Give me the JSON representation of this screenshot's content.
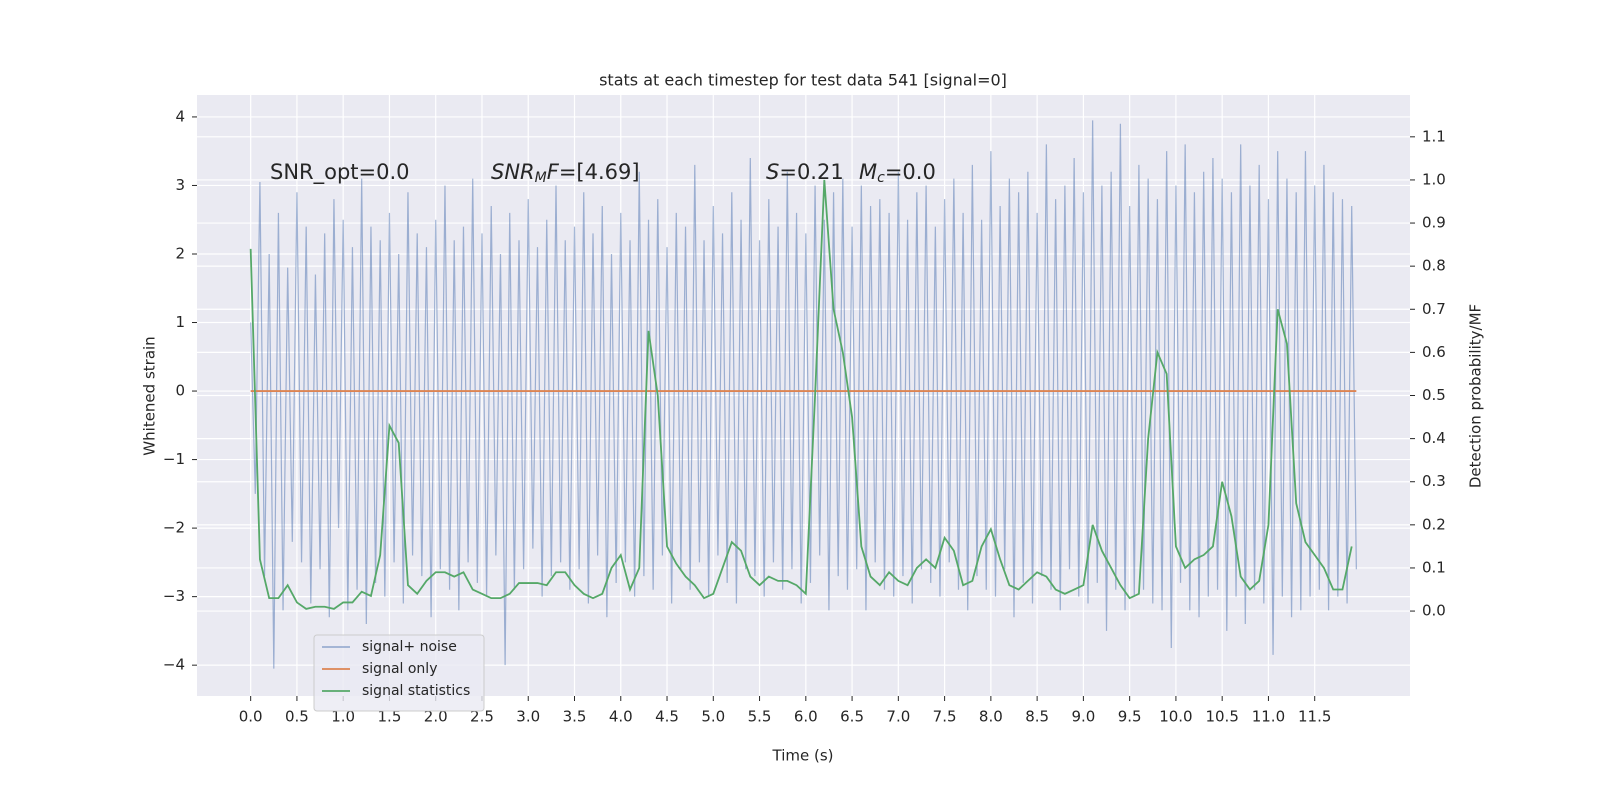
{
  "chart_data": {
    "type": "line",
    "title": "stats at each timestep for test data 541 [signal=0]",
    "xlabel": "Time (s)",
    "ylabel": "Whitened strain",
    "y2label": "Detection probability/MF",
    "xlim": [
      -0.58,
      12.53
    ],
    "ylim": [
      -4.45,
      4.32
    ],
    "y2lim": [
      -0.197,
      1.197
    ],
    "grid": true,
    "legend": "lower left",
    "xticks": [
      {
        "value": 0,
        "label": "0.0"
      },
      0.5,
      {
        "value": 1,
        "label": "1.0"
      },
      1.5,
      {
        "value": 2,
        "label": "2.0"
      },
      2.5,
      {
        "value": 3,
        "label": "3.0"
      },
      3.5,
      {
        "value": 4,
        "label": "4.0"
      },
      4.5,
      {
        "value": 5,
        "label": "5.0"
      },
      5.5,
      {
        "value": 6,
        "label": "6.0"
      },
      6.5,
      {
        "value": 7,
        "label": "7.0"
      },
      7.5,
      {
        "value": 8,
        "label": "8.0"
      },
      8.5,
      {
        "value": 9,
        "label": "9.0"
      },
      9.5,
      {
        "value": 10,
        "label": "10.0"
      },
      10.5,
      {
        "value": 11,
        "label": "11.0"
      },
      11.5
    ],
    "yticks": [
      {
        "value": -4,
        "label": "−4"
      },
      {
        "value": -3,
        "label": "−3"
      },
      {
        "value": -2,
        "label": "−2"
      },
      {
        "value": -1,
        "label": "−1"
      },
      0,
      1,
      2,
      3,
      4
    ],
    "y2ticks": [
      {
        "value": 0,
        "label": "0.0"
      },
      0.1,
      0.2,
      0.3,
      0.4,
      0.5,
      0.6,
      0.7,
      0.8,
      0.9,
      {
        "value": 1,
        "label": "1.0"
      },
      1.1
    ],
    "annotations": [
      [
        {
          "text": "SNR_opt=0.0"
        }
      ],
      [
        {
          "text": "SNR",
          "italic": true
        },
        {
          "text": "M",
          "italic": true,
          "sub": true
        },
        {
          "text": "F",
          "italic": true
        },
        {
          "text": "=[4.69]"
        }
      ],
      [
        {
          "text": "S",
          "italic": true
        },
        {
          "text": "=0.21"
        }
      ],
      [
        {
          "text": "M",
          "italic": true
        },
        {
          "text": "c",
          "italic": true,
          "sub": true
        },
        {
          "text": "=0.0"
        }
      ]
    ],
    "series": [
      {
        "name": "signal+ noise",
        "color": "#4c72b0",
        "opacity": 0.5,
        "x": [
          0,
          0.05,
          0.1,
          0.15,
          0.2,
          0.25,
          0.3,
          0.35,
          0.4,
          0.45,
          0.5,
          0.55,
          0.6,
          0.65,
          0.7,
          0.75,
          0.8,
          0.85,
          0.9,
          0.95,
          1,
          1.05,
          1.1,
          1.15,
          1.2,
          1.25,
          1.3,
          1.35,
          1.4,
          1.45,
          1.5,
          1.55,
          1.6,
          1.65,
          1.7,
          1.75,
          1.8,
          1.85,
          1.9,
          1.95,
          2,
          2.05,
          2.1,
          2.15,
          2.2,
          2.25,
          2.3,
          2.35,
          2.4,
          2.45,
          2.5,
          2.55,
          2.6,
          2.65,
          2.7,
          2.75,
          2.8,
          2.85,
          2.9,
          2.95,
          3,
          3.05,
          3.1,
          3.15,
          3.2,
          3.25,
          3.3,
          3.35,
          3.4,
          3.45,
          3.5,
          3.55,
          3.6,
          3.65,
          3.7,
          3.75,
          3.8,
          3.85,
          3.9,
          3.95,
          4,
          4.05,
          4.1,
          4.15,
          4.2,
          4.25,
          4.3,
          4.35,
          4.4,
          4.45,
          4.5,
          4.55,
          4.6,
          4.65,
          4.7,
          4.75,
          4.8,
          4.85,
          4.9,
          4.95,
          5,
          5.05,
          5.1,
          5.15,
          5.2,
          5.25,
          5.3,
          5.35,
          5.4,
          5.45,
          5.5,
          5.55,
          5.6,
          5.65,
          5.7,
          5.75,
          5.8,
          5.85,
          5.9,
          5.95,
          6,
          6.05,
          6.1,
          6.15,
          6.2,
          6.25,
          6.3,
          6.35,
          6.4,
          6.45,
          6.5,
          6.55,
          6.6,
          6.65,
          6.7,
          6.75,
          6.8,
          6.85,
          6.9,
          6.95,
          7,
          7.05,
          7.1,
          7.15,
          7.2,
          7.25,
          7.3,
          7.35,
          7.4,
          7.45,
          7.5,
          7.55,
          7.6,
          7.65,
          7.7,
          7.75,
          7.8,
          7.85,
          7.9,
          7.95,
          8,
          8.05,
          8.1,
          8.15,
          8.2,
          8.25,
          8.3,
          8.35,
          8.4,
          8.45,
          8.5,
          8.55,
          8.6,
          8.65,
          8.7,
          8.75,
          8.8,
          8.85,
          8.9,
          8.95,
          9,
          9.05,
          9.1,
          9.15,
          9.2,
          9.25,
          9.3,
          9.35,
          9.4,
          9.45,
          9.5,
          9.55,
          9.6,
          9.65,
          9.7,
          9.75,
          9.8,
          9.85,
          9.9,
          9.95,
          10,
          10.05,
          10.1,
          10.15,
          10.2,
          10.25,
          10.3,
          10.35,
          10.4,
          10.45,
          10.5,
          10.55,
          10.6,
          10.65,
          10.7,
          10.75,
          10.8,
          10.85,
          10.9,
          10.95,
          11,
          11.05,
          11.1,
          11.15,
          11.2,
          11.25,
          11.3,
          11.35,
          11.4,
          11.45,
          11.5,
          11.55,
          11.6,
          11.65,
          11.7,
          11.75,
          11.8,
          11.85,
          11.9,
          11.95
        ],
        "values": [
          1.0,
          -1.5,
          3.05,
          -2.7,
          2.0,
          -4.05,
          2.6,
          -3.2,
          1.8,
          -2.2,
          2.9,
          -2.5,
          2.4,
          -3.1,
          1.7,
          -2.6,
          2.3,
          -3.3,
          2.8,
          -2.0,
          2.5,
          -3.2,
          2.1,
          -2.9,
          3.1,
          -3.4,
          2.4,
          -2.8,
          2.2,
          -3.0,
          2.6,
          -2.5,
          2.0,
          -3.1,
          2.9,
          -2.4,
          2.3,
          -2.7,
          2.1,
          -3.3,
          2.5,
          -2.6,
          3.0,
          -2.9,
          2.2,
          -3.2,
          2.4,
          -2.5,
          3.1,
          -2.8,
          2.3,
          -3.0,
          2.7,
          -2.4,
          2.0,
          -4.0,
          2.6,
          -2.9,
          2.2,
          -2.6,
          2.8,
          -2.3,
          2.1,
          -3.0,
          2.5,
          -2.7,
          3.0,
          -2.5,
          2.2,
          -2.9,
          2.4,
          -2.6,
          2.9,
          -3.1,
          2.3,
          -2.4,
          2.7,
          -3.3,
          2.0,
          -2.8,
          2.6,
          -2.5,
          2.2,
          -3.0,
          3.2,
          -2.7,
          2.5,
          -2.9,
          2.8,
          -2.4,
          2.1,
          -3.1,
          2.6,
          -2.6,
          2.4,
          -2.9,
          3.3,
          -2.5,
          2.2,
          -3.0,
          2.7,
          -2.4,
          2.3,
          -2.8,
          2.9,
          -3.1,
          2.5,
          -2.6,
          3.4,
          -2.7,
          2.2,
          -3.0,
          2.8,
          -2.5,
          2.4,
          -2.9,
          3.2,
          -2.6,
          2.6,
          -3.1,
          2.3,
          -2.8,
          3.0,
          -2.4,
          2.5,
          -3.2,
          2.9,
          -2.7,
          3.1,
          -2.9,
          2.4,
          -2.6,
          3.0,
          -3.2,
          2.7,
          -2.5,
          2.8,
          -2.9,
          2.6,
          -3.0,
          3.2,
          -2.7,
          2.5,
          -3.1,
          2.9,
          -2.6,
          3.0,
          -2.8,
          2.4,
          -3.0,
          2.8,
          -2.5,
          3.1,
          -2.9,
          2.6,
          -3.2,
          3.3,
          -2.7,
          2.5,
          -2.9,
          3.5,
          -3.0,
          2.7,
          -2.6,
          3.1,
          -3.3,
          2.9,
          -2.8,
          3.2,
          -3.1,
          2.6,
          -2.7,
          3.6,
          -2.9,
          2.8,
          -3.2,
          3.0,
          -2.6,
          3.4,
          -3.0,
          2.9,
          -3.1,
          3.95,
          -2.8,
          3.0,
          -3.5,
          3.2,
          -2.9,
          3.9,
          -3.2,
          2.7,
          -3.0,
          3.3,
          -2.9,
          3.1,
          -3.1,
          2.8,
          -3.2,
          3.5,
          -3.75,
          3.0,
          -2.8,
          3.6,
          -3.2,
          2.9,
          -3.3,
          3.2,
          -3.0,
          3.4,
          -2.9,
          3.1,
          -3.5,
          2.9,
          -3.0,
          3.6,
          -3.4,
          3.0,
          -2.9,
          3.3,
          -3.1,
          2.8,
          -3.85,
          3.5,
          -3.0,
          3.1,
          -3.3,
          2.9,
          -3.2,
          3.5,
          -3.0,
          3.0,
          -2.9,
          3.3,
          -3.2,
          2.9,
          -3.0,
          2.8,
          -3.1,
          2.7,
          -2.6
        ]
      },
      {
        "name": "signal only",
        "color": "#dd8452",
        "x": [
          0,
          11.95
        ],
        "values": [
          0,
          0
        ]
      },
      {
        "name": "signal statistics",
        "color": "#55a868",
        "axis": "y2",
        "x": [
          0,
          0.1,
          0.2,
          0.3,
          0.4,
          0.5,
          0.6,
          0.7,
          0.8,
          0.9,
          1,
          1.1,
          1.2,
          1.3,
          1.4,
          1.5,
          1.6,
          1.7,
          1.8,
          1.9,
          2,
          2.1,
          2.2,
          2.3,
          2.4,
          2.5,
          2.6,
          2.7,
          2.8,
          2.9,
          3,
          3.1,
          3.2,
          3.3,
          3.4,
          3.5,
          3.6,
          3.7,
          3.8,
          3.9,
          4,
          4.1,
          4.2,
          4.3,
          4.4,
          4.5,
          4.6,
          4.7,
          4.8,
          4.9,
          5,
          5.1,
          5.2,
          5.3,
          5.4,
          5.5,
          5.6,
          5.7,
          5.8,
          5.9,
          6,
          6.1,
          6.2,
          6.3,
          6.4,
          6.5,
          6.6,
          6.7,
          6.8,
          6.9,
          7,
          7.1,
          7.2,
          7.3,
          7.4,
          7.5,
          7.6,
          7.7,
          7.8,
          7.9,
          8,
          8.1,
          8.2,
          8.3,
          8.4,
          8.5,
          8.6,
          8.7,
          8.8,
          8.9,
          9,
          9.1,
          9.2,
          9.3,
          9.4,
          9.5,
          9.6,
          9.7,
          9.8,
          9.9,
          10,
          10.1,
          10.2,
          10.3,
          10.4,
          10.5,
          10.6,
          10.7,
          10.8,
          10.9,
          11,
          11.1,
          11.2,
          11.3,
          11.4,
          11.5,
          11.6,
          11.7,
          11.8,
          11.9
        ],
        "values": [
          0.84,
          0.12,
          0.03,
          0.03,
          0.06,
          0.02,
          0.005,
          0.01,
          0.01,
          0.005,
          0.02,
          0.02,
          0.045,
          0.035,
          0.13,
          0.43,
          0.39,
          0.06,
          0.04,
          0.07,
          0.09,
          0.09,
          0.08,
          0.09,
          0.05,
          0.04,
          0.03,
          0.03,
          0.04,
          0.065,
          0.065,
          0.065,
          0.06,
          0.09,
          0.09,
          0.06,
          0.04,
          0.03,
          0.04,
          0.1,
          0.13,
          0.05,
          0.1,
          0.65,
          0.5,
          0.15,
          0.11,
          0.08,
          0.06,
          0.03,
          0.04,
          0.1,
          0.16,
          0.14,
          0.08,
          0.06,
          0.08,
          0.07,
          0.07,
          0.06,
          0.04,
          0.5,
          1.0,
          0.7,
          0.6,
          0.45,
          0.15,
          0.08,
          0.06,
          0.09,
          0.07,
          0.06,
          0.1,
          0.12,
          0.1,
          0.17,
          0.14,
          0.06,
          0.07,
          0.15,
          0.19,
          0.12,
          0.06,
          0.05,
          0.07,
          0.09,
          0.08,
          0.05,
          0.04,
          0.05,
          0.06,
          0.2,
          0.14,
          0.1,
          0.06,
          0.03,
          0.04,
          0.4,
          0.6,
          0.55,
          0.15,
          0.1,
          0.12,
          0.13,
          0.15,
          0.3,
          0.22,
          0.08,
          0.05,
          0.07,
          0.2,
          0.7,
          0.62,
          0.25,
          0.16,
          0.13,
          0.1,
          0.05,
          0.05,
          0.15
        ]
      }
    ]
  }
}
